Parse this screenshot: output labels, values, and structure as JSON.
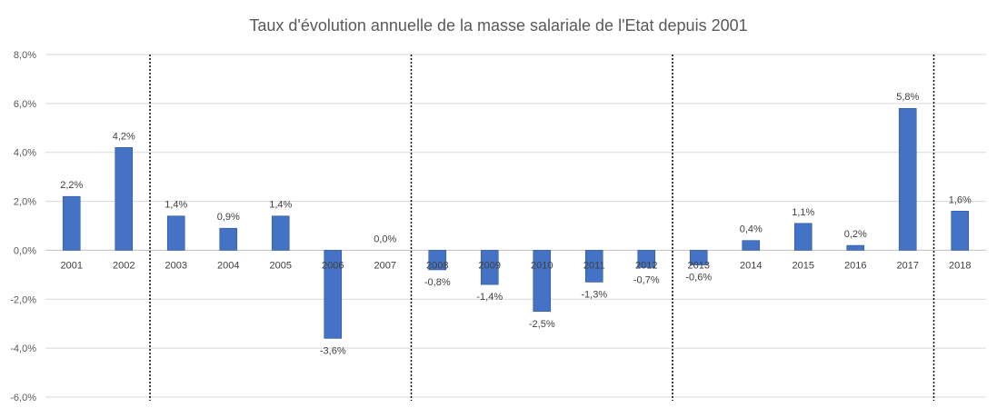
{
  "chart_data": {
    "type": "bar",
    "title": "Taux d'évolution annuelle de la masse salariale de l'Etat depuis 2001",
    "xlabel": "",
    "ylabel": "",
    "ylim": [
      -6.0,
      8.0
    ],
    "yticks": [
      8.0,
      6.0,
      4.0,
      2.0,
      0.0,
      -2.0,
      -4.0,
      -6.0
    ],
    "ytick_labels": [
      "8,0%",
      "6,0%",
      "4,0%",
      "2,0%",
      "0,0%",
      "-2,0%",
      "-4,0%",
      "-6,0%"
    ],
    "grid": true,
    "bar_color": "#4472C4",
    "categories": [
      "2001",
      "2002",
      "2003",
      "2004",
      "2005",
      "2006",
      "2007",
      "2008",
      "2009",
      "2010",
      "2011",
      "2012",
      "2013",
      "2014",
      "2015",
      "2016",
      "2017",
      "2018"
    ],
    "values": [
      2.2,
      4.2,
      1.4,
      0.9,
      1.4,
      -3.6,
      0.0,
      -0.8,
      -1.4,
      -2.5,
      -1.3,
      -0.7,
      -0.6,
      0.4,
      1.1,
      0.2,
      5.8,
      1.6
    ],
    "data_labels": [
      "2,2%",
      "4,2%",
      "1,4%",
      "0,9%",
      "1,4%",
      "-3,6%",
      "0,0%",
      "-0,8%",
      "-1,4%",
      "-2,5%",
      "-1,3%",
      "-0,7%",
      "-0,6%",
      "0,4%",
      "1,1%",
      "0,2%",
      "5,8%",
      "1,6%"
    ],
    "dotted_separators_between": [
      "2002|2003",
      "2007|2008",
      "2012|2013",
      "2017|2018"
    ]
  }
}
